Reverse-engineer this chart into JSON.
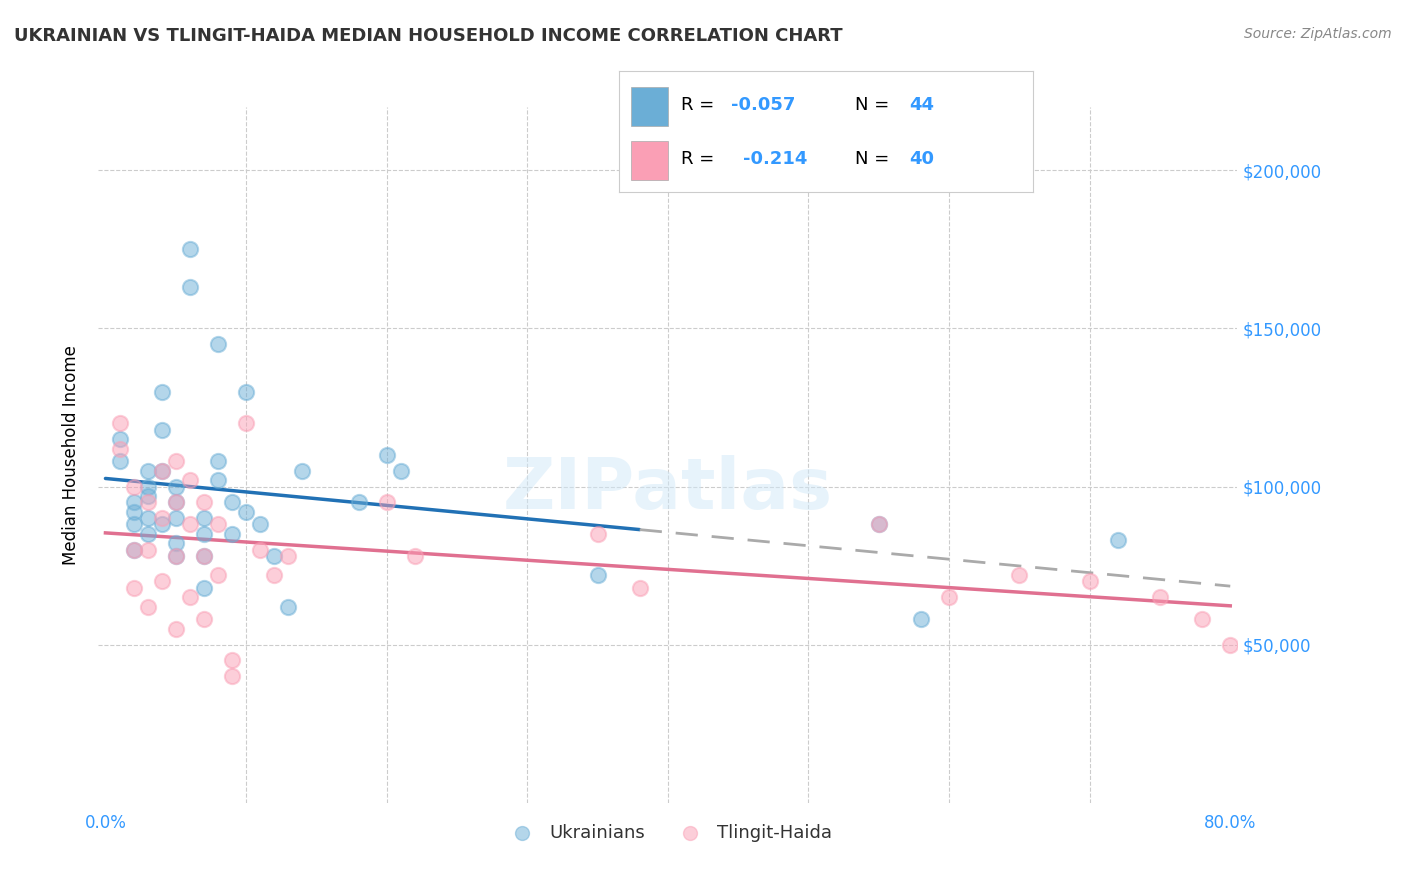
{
  "title": "UKRAINIAN VS TLINGIT-HAIDA MEDIAN HOUSEHOLD INCOME CORRELATION CHART",
  "source": "Source: ZipAtlas.com",
  "ylabel": "Median Household Income",
  "yticks": [
    0,
    50000,
    100000,
    150000,
    200000
  ],
  "ytick_labels": [
    "",
    "$50,000",
    "$100,000",
    "$150,000",
    "$200,000"
  ],
  "xlim": [
    0.0,
    0.8
  ],
  "ylim": [
    0,
    220000
  ],
  "background_color": "#ffffff",
  "blue_color": "#6baed6",
  "pink_color": "#fa9fb5",
  "blue_line_color": "#2171b5",
  "pink_line_color": "#e07090",
  "axis_color": "#3399ff",
  "grid_color": "#cccccc",
  "ukrainians": {
    "x": [
      0.01,
      0.01,
      0.02,
      0.02,
      0.02,
      0.02,
      0.03,
      0.03,
      0.03,
      0.03,
      0.03,
      0.04,
      0.04,
      0.04,
      0.04,
      0.05,
      0.05,
      0.05,
      0.05,
      0.05,
      0.06,
      0.06,
      0.07,
      0.07,
      0.07,
      0.07,
      0.08,
      0.08,
      0.08,
      0.09,
      0.09,
      0.1,
      0.1,
      0.11,
      0.12,
      0.13,
      0.14,
      0.18,
      0.2,
      0.21,
      0.35,
      0.55,
      0.58,
      0.72
    ],
    "y": [
      115000,
      108000,
      95000,
      92000,
      88000,
      80000,
      105000,
      100000,
      97000,
      90000,
      85000,
      130000,
      118000,
      105000,
      88000,
      100000,
      95000,
      90000,
      82000,
      78000,
      175000,
      163000,
      90000,
      85000,
      78000,
      68000,
      145000,
      108000,
      102000,
      95000,
      85000,
      130000,
      92000,
      88000,
      78000,
      62000,
      105000,
      95000,
      110000,
      105000,
      72000,
      88000,
      58000,
      83000
    ]
  },
  "tlingit": {
    "x": [
      0.01,
      0.01,
      0.02,
      0.02,
      0.02,
      0.03,
      0.03,
      0.03,
      0.04,
      0.04,
      0.04,
      0.05,
      0.05,
      0.05,
      0.05,
      0.06,
      0.06,
      0.06,
      0.07,
      0.07,
      0.07,
      0.08,
      0.08,
      0.09,
      0.09,
      0.1,
      0.11,
      0.12,
      0.13,
      0.2,
      0.22,
      0.35,
      0.38,
      0.55,
      0.6,
      0.65,
      0.7,
      0.75,
      0.78,
      0.8
    ],
    "y": [
      120000,
      112000,
      100000,
      80000,
      68000,
      95000,
      80000,
      62000,
      105000,
      90000,
      70000,
      108000,
      95000,
      78000,
      55000,
      102000,
      88000,
      65000,
      95000,
      78000,
      58000,
      88000,
      72000,
      45000,
      40000,
      120000,
      80000,
      72000,
      78000,
      95000,
      78000,
      85000,
      68000,
      88000,
      65000,
      72000,
      70000,
      65000,
      58000,
      50000
    ]
  }
}
